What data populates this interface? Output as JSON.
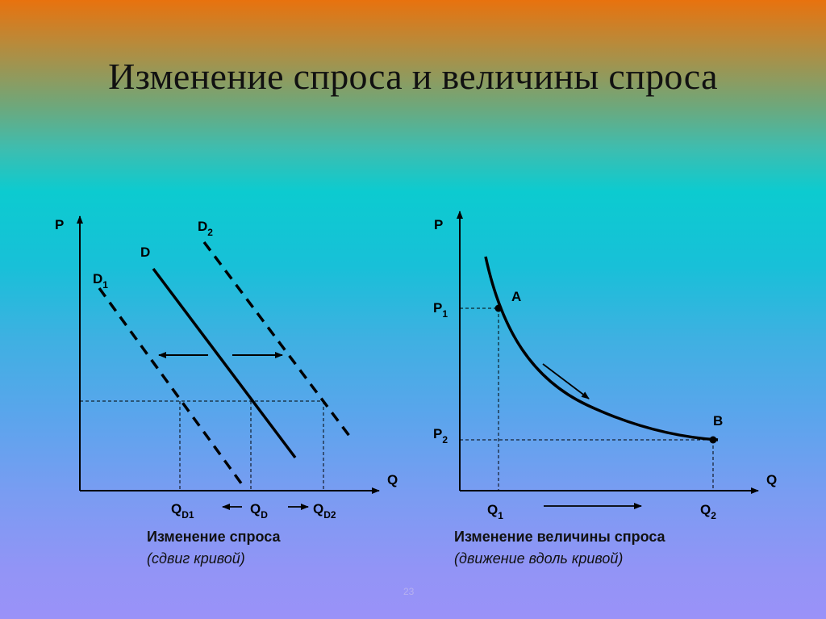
{
  "slide": {
    "title": "Изменение спроса и величины спроса",
    "page_number": "23"
  },
  "left_diagram": {
    "axis_y": "P",
    "axis_x": "Q",
    "curve_d": "D",
    "curve_d1": "D",
    "curve_d1_sub": "1",
    "curve_d2": "D",
    "curve_d2_sub": "2",
    "q_d1": "Q",
    "q_d1_sub": "D1",
    "q_d": "Q",
    "q_d_sub": "D",
    "q_d2": "Q",
    "q_d2_sub": "D2",
    "caption": "Изменение спроса",
    "note": "(сдвиг кривой)"
  },
  "right_diagram": {
    "axis_y": "P",
    "axis_x": "Q",
    "point_a": "A",
    "point_b": "B",
    "p1": "P",
    "p1_sub": "1",
    "p2": "P",
    "p2_sub": "2",
    "q1": "Q",
    "q1_sub": "1",
    "q2": "Q",
    "q2_sub": "2",
    "caption": "Изменение величины спроса",
    "note": "(движение вдоль кривой)"
  }
}
